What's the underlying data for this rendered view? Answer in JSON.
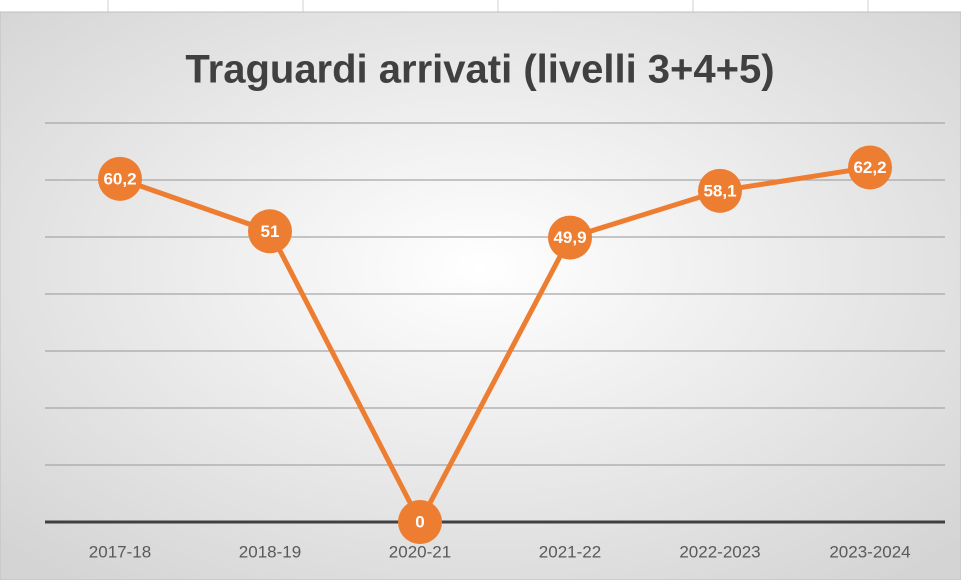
{
  "chart_data": {
    "type": "line",
    "title": "Traguardi arrivati (livelli 3+4+5)",
    "categories": [
      "2017-18",
      "2018-19",
      "2020-21",
      "2021-22",
      "2022-2023",
      "2023-2024"
    ],
    "values": [
      60.2,
      51,
      0,
      49.9,
      58.1,
      62.2
    ],
    "value_labels": [
      "60,2",
      "51",
      "0",
      "49,9",
      "58,1",
      "62,2"
    ],
    "color": "#ed7d31",
    "ylim": [
      0,
      70
    ],
    "yticks": [
      0,
      10,
      20,
      30,
      40,
      50,
      60,
      70
    ],
    "grid": true
  }
}
